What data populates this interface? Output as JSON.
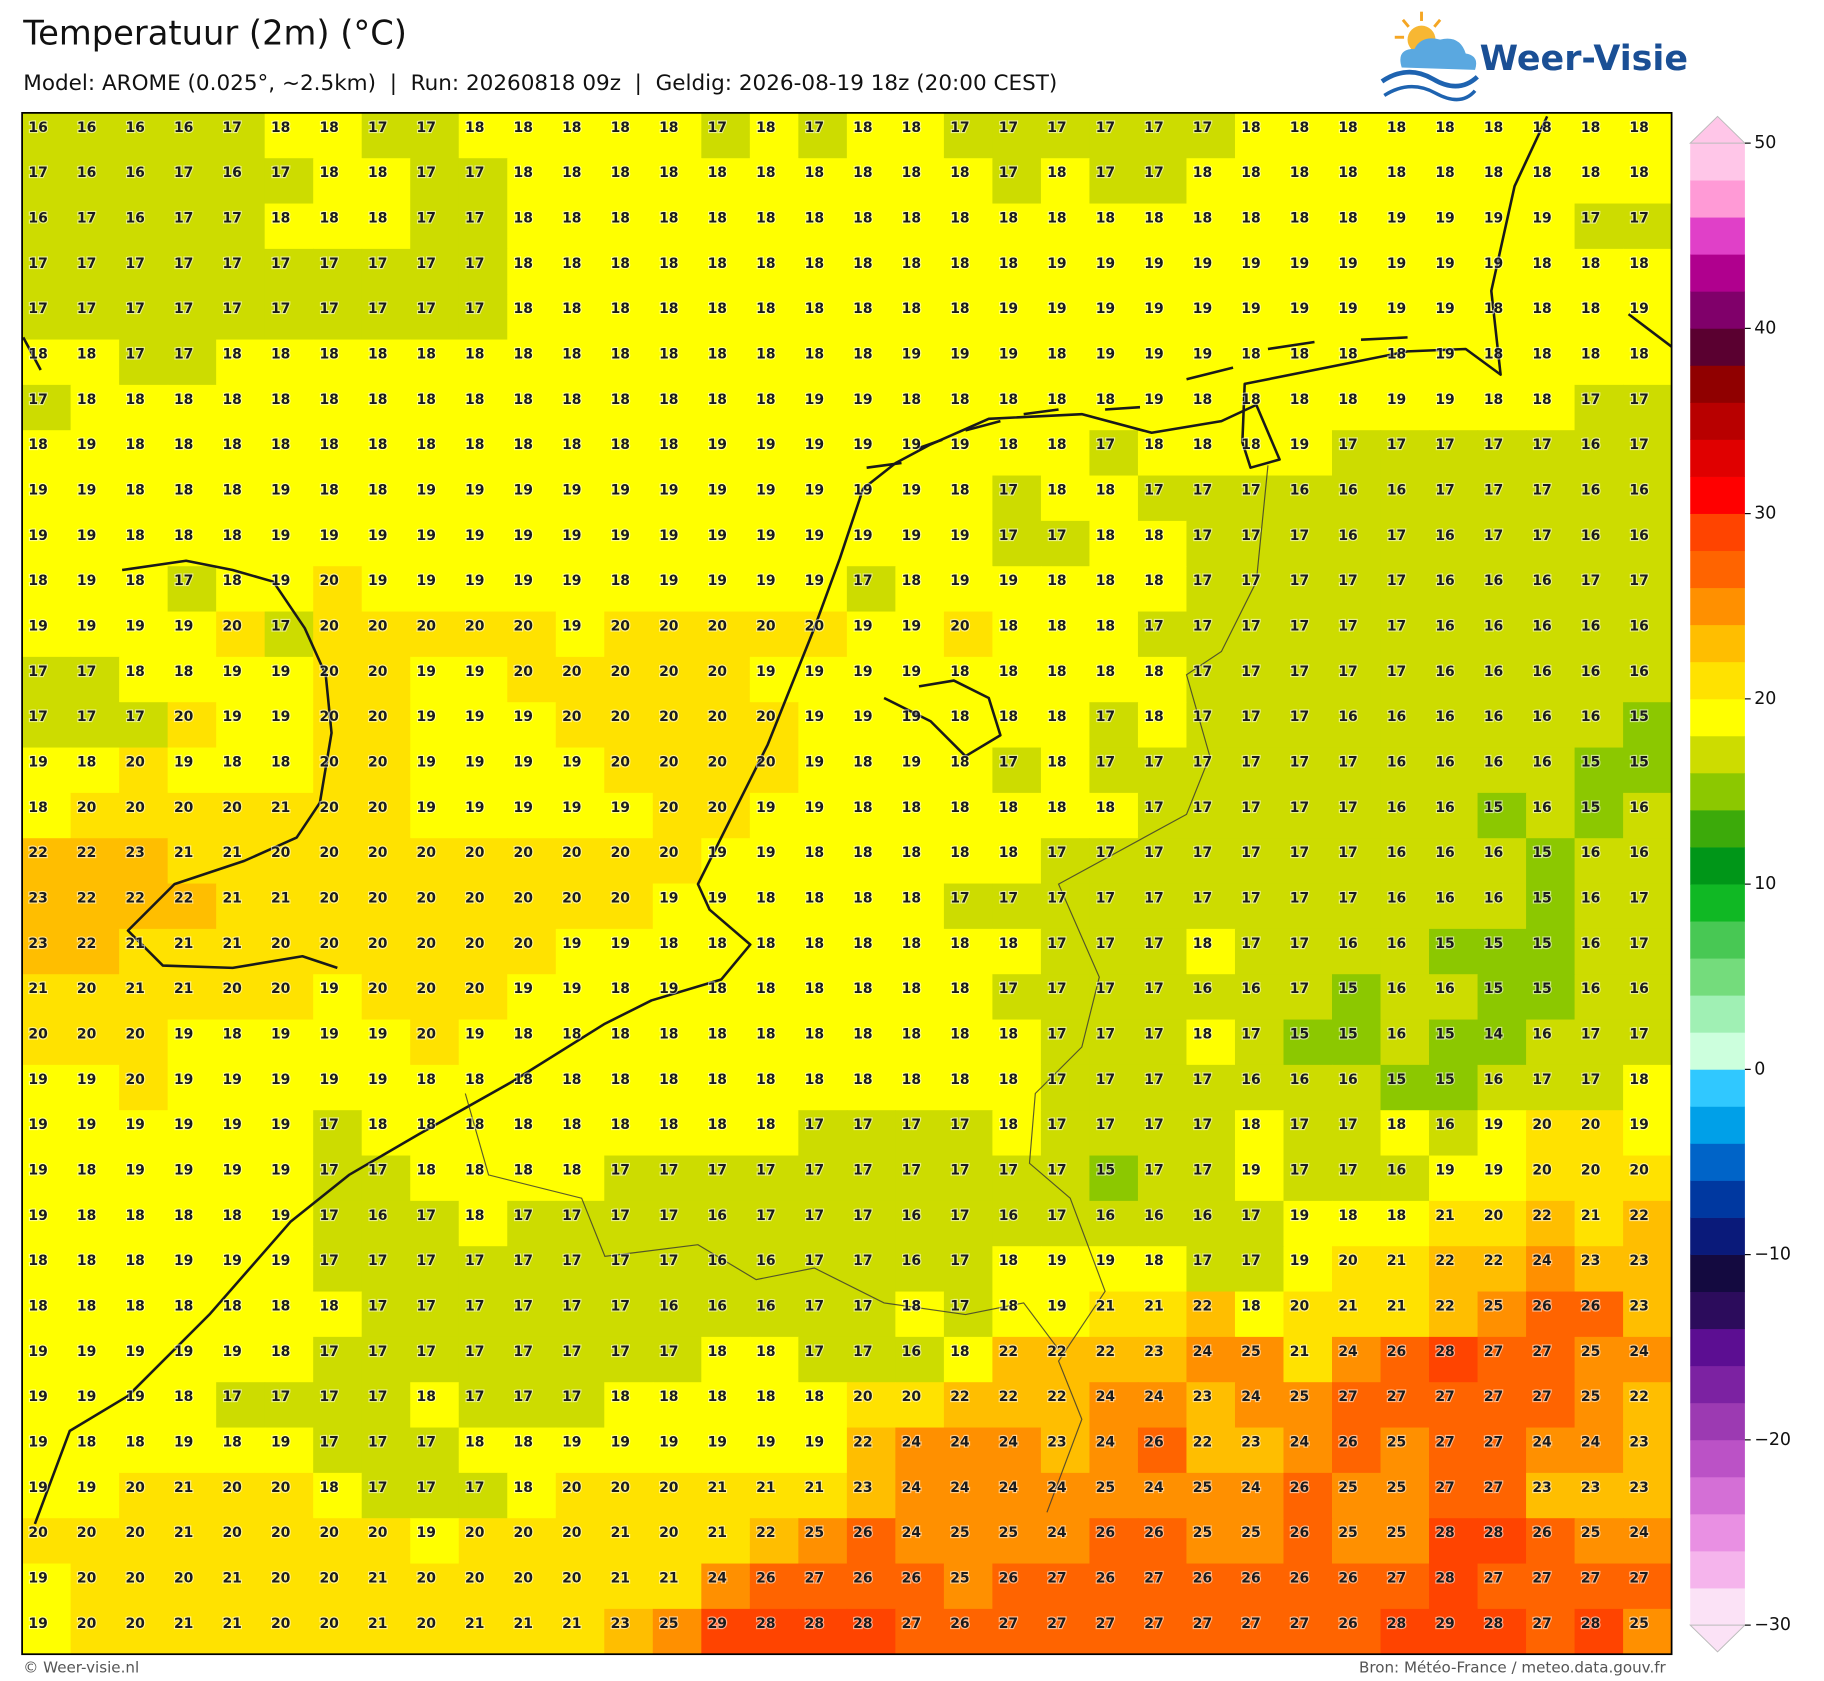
{
  "header": {
    "title": "Temperatuur (2m) (°C)",
    "subtitle": "Model: AROME (0.025°, ~2.5km)  |  Run: 20260818 09z  |  Geldig: 2026-08-19 18z (20:00 CEST)"
  },
  "logo": "Weer-Visie",
  "map": {
    "type": "grid-labels",
    "rows": [
      [
        16,
        16,
        16,
        16,
        17,
        18,
        18,
        17,
        17,
        18,
        18,
        18,
        18,
        18,
        17,
        18,
        17,
        18,
        18,
        17,
        17,
        17,
        17,
        17,
        17,
        18,
        18,
        18,
        18,
        18,
        18,
        18,
        18,
        18
      ],
      [
        17,
        16,
        16,
        17,
        16,
        17,
        18,
        18,
        17,
        17,
        18,
        18,
        18,
        18,
        18,
        18,
        18,
        18,
        18,
        18,
        17,
        18,
        17,
        17,
        18,
        18,
        18,
        18,
        18,
        18,
        18,
        18,
        18,
        18
      ],
      [
        16,
        17,
        16,
        17,
        17,
        18,
        18,
        18,
        17,
        17,
        18,
        18,
        18,
        18,
        18,
        18,
        18,
        18,
        18,
        18,
        18,
        18,
        18,
        18,
        18,
        18,
        18,
        18,
        19,
        19,
        19,
        19,
        17,
        17
      ],
      [
        17,
        17,
        17,
        17,
        17,
        17,
        17,
        17,
        17,
        17,
        18,
        18,
        18,
        18,
        18,
        18,
        18,
        18,
        18,
        18,
        18,
        19,
        19,
        19,
        19,
        19,
        19,
        19,
        19,
        19,
        19,
        18,
        18,
        18
      ],
      [
        17,
        17,
        17,
        17,
        17,
        17,
        17,
        17,
        17,
        17,
        18,
        18,
        18,
        18,
        18,
        18,
        18,
        18,
        18,
        18,
        19,
        19,
        19,
        19,
        19,
        19,
        19,
        19,
        19,
        19,
        18,
        18,
        18,
        19
      ],
      [
        18,
        18,
        17,
        17,
        18,
        18,
        18,
        18,
        18,
        18,
        18,
        18,
        18,
        18,
        18,
        18,
        18,
        18,
        19,
        19,
        19,
        18,
        19,
        19,
        19,
        18,
        18,
        18,
        18,
        19,
        18,
        18,
        18,
        18
      ],
      [
        17,
        18,
        18,
        18,
        18,
        18,
        18,
        18,
        18,
        18,
        18,
        18,
        18,
        18,
        18,
        18,
        19,
        19,
        18,
        18,
        18,
        18,
        18,
        19,
        18,
        18,
        18,
        18,
        19,
        19,
        18,
        18,
        17,
        17
      ],
      [
        18,
        19,
        18,
        18,
        18,
        18,
        18,
        18,
        18,
        18,
        18,
        18,
        18,
        18,
        19,
        19,
        19,
        19,
        19,
        19,
        18,
        18,
        17,
        18,
        18,
        18,
        19,
        17,
        17,
        17,
        17,
        17,
        16,
        17
      ],
      [
        19,
        19,
        18,
        18,
        18,
        19,
        18,
        18,
        19,
        19,
        19,
        19,
        19,
        19,
        19,
        19,
        19,
        19,
        19,
        18,
        17,
        18,
        18,
        17,
        17,
        17,
        16,
        16,
        16,
        17,
        17,
        17,
        16,
        16
      ],
      [
        19,
        19,
        18,
        18,
        18,
        19,
        19,
        19,
        19,
        19,
        19,
        19,
        19,
        19,
        19,
        19,
        19,
        19,
        19,
        19,
        17,
        17,
        18,
        18,
        17,
        17,
        17,
        16,
        17,
        16,
        17,
        17,
        16,
        16
      ],
      [
        18,
        19,
        18,
        17,
        18,
        19,
        20,
        19,
        19,
        19,
        19,
        19,
        18,
        19,
        19,
        19,
        19,
        17,
        18,
        19,
        19,
        18,
        18,
        18,
        17,
        17,
        17,
        17,
        17,
        16,
        16,
        16,
        17,
        17
      ],
      [
        19,
        19,
        19,
        19,
        20,
        17,
        20,
        20,
        20,
        20,
        20,
        19,
        20,
        20,
        20,
        20,
        20,
        19,
        19,
        20,
        18,
        18,
        18,
        17,
        17,
        17,
        17,
        17,
        17,
        16,
        16,
        16,
        16,
        16
      ],
      [
        17,
        17,
        18,
        18,
        19,
        19,
        20,
        20,
        19,
        19,
        20,
        20,
        20,
        20,
        20,
        19,
        19,
        19,
        19,
        18,
        18,
        18,
        18,
        18,
        17,
        17,
        17,
        17,
        17,
        16,
        16,
        16,
        16,
        16
      ],
      [
        17,
        17,
        17,
        20,
        19,
        19,
        20,
        20,
        19,
        19,
        19,
        20,
        20,
        20,
        20,
        20,
        19,
        19,
        19,
        18,
        18,
        18,
        17,
        18,
        17,
        17,
        17,
        16,
        16,
        16,
        16,
        16,
        16,
        15
      ],
      [
        19,
        18,
        20,
        19,
        18,
        18,
        20,
        20,
        19,
        19,
        19,
        19,
        20,
        20,
        20,
        20,
        19,
        18,
        19,
        18,
        17,
        18,
        17,
        17,
        17,
        17,
        17,
        17,
        16,
        16,
        16,
        16,
        15,
        15
      ],
      [
        18,
        20,
        20,
        20,
        20,
        21,
        20,
        20,
        19,
        19,
        19,
        19,
        19,
        20,
        20,
        19,
        19,
        18,
        18,
        18,
        18,
        18,
        18,
        17,
        17,
        17,
        17,
        17,
        16,
        16,
        15,
        16,
        15,
        16
      ],
      [
        22,
        22,
        23,
        21,
        21,
        20,
        20,
        20,
        20,
        20,
        20,
        20,
        20,
        20,
        19,
        19,
        18,
        18,
        18,
        18,
        18,
        17,
        17,
        17,
        17,
        17,
        17,
        17,
        16,
        16,
        16,
        15,
        16,
        16
      ],
      [
        23,
        22,
        22,
        22,
        21,
        21,
        20,
        20,
        20,
        20,
        20,
        20,
        20,
        19,
        19,
        18,
        18,
        18,
        18,
        17,
        17,
        17,
        17,
        17,
        17,
        17,
        17,
        17,
        16,
        16,
        16,
        15,
        16,
        17
      ],
      [
        23,
        22,
        21,
        21,
        21,
        20,
        20,
        20,
        20,
        20,
        20,
        19,
        19,
        18,
        18,
        18,
        18,
        18,
        18,
        18,
        18,
        17,
        17,
        17,
        18,
        17,
        17,
        16,
        16,
        15,
        15,
        15,
        16,
        17
      ],
      [
        21,
        20,
        21,
        21,
        20,
        20,
        19,
        20,
        20,
        20,
        19,
        19,
        18,
        19,
        18,
        18,
        18,
        18,
        18,
        18,
        17,
        17,
        17,
        17,
        16,
        16,
        17,
        15,
        16,
        16,
        15,
        15,
        16,
        16
      ],
      [
        20,
        20,
        20,
        19,
        18,
        19,
        19,
        19,
        20,
        19,
        18,
        18,
        18,
        18,
        18,
        18,
        18,
        18,
        18,
        18,
        18,
        17,
        17,
        17,
        18,
        17,
        15,
        15,
        16,
        15,
        14,
        16,
        17,
        17
      ],
      [
        19,
        19,
        20,
        19,
        19,
        19,
        19,
        19,
        18,
        18,
        18,
        18,
        18,
        18,
        18,
        18,
        18,
        18,
        18,
        18,
        18,
        17,
        17,
        17,
        17,
        16,
        16,
        16,
        15,
        15,
        16,
        17,
        17,
        18
      ],
      [
        19,
        19,
        19,
        19,
        19,
        19,
        17,
        18,
        18,
        18,
        18,
        18,
        18,
        18,
        18,
        18,
        17,
        17,
        17,
        17,
        18,
        17,
        17,
        17,
        17,
        18,
        17,
        17,
        18,
        16,
        19,
        20,
        20,
        19
      ],
      [
        19,
        18,
        19,
        19,
        19,
        19,
        17,
        17,
        18,
        18,
        18,
        18,
        17,
        17,
        17,
        17,
        17,
        17,
        17,
        17,
        17,
        17,
        15,
        17,
        17,
        19,
        17,
        17,
        16,
        19,
        19,
        20,
        20,
        20
      ],
      [
        19,
        18,
        18,
        18,
        18,
        19,
        17,
        16,
        17,
        18,
        17,
        17,
        17,
        17,
        16,
        17,
        17,
        17,
        16,
        17,
        16,
        17,
        16,
        16,
        16,
        17,
        19,
        18,
        18,
        21,
        20,
        22,
        21,
        22
      ],
      [
        18,
        18,
        18,
        19,
        19,
        19,
        17,
        17,
        17,
        17,
        17,
        17,
        17,
        17,
        16,
        16,
        17,
        17,
        16,
        17,
        18,
        19,
        19,
        18,
        17,
        17,
        19,
        20,
        21,
        22,
        22,
        24,
        23,
        23
      ],
      [
        18,
        18,
        18,
        18,
        18,
        18,
        18,
        17,
        17,
        17,
        17,
        17,
        17,
        16,
        16,
        16,
        17,
        17,
        18,
        17,
        18,
        19,
        21,
        21,
        22,
        18,
        20,
        21,
        21,
        22,
        25,
        26,
        26,
        23
      ],
      [
        19,
        19,
        19,
        19,
        19,
        18,
        17,
        17,
        17,
        17,
        17,
        17,
        17,
        17,
        18,
        18,
        17,
        17,
        16,
        18,
        22,
        22,
        22,
        23,
        24,
        25,
        21,
        24,
        26,
        28,
        27,
        27,
        25,
        24
      ],
      [
        19,
        19,
        19,
        18,
        17,
        17,
        17,
        17,
        18,
        17,
        17,
        17,
        18,
        18,
        18,
        18,
        18,
        20,
        20,
        22,
        22,
        22,
        24,
        24,
        23,
        24,
        25,
        27,
        27,
        27,
        27,
        27,
        25,
        22
      ],
      [
        19,
        18,
        18,
        19,
        18,
        19,
        17,
        17,
        17,
        18,
        18,
        19,
        19,
        19,
        19,
        19,
        19,
        22,
        24,
        24,
        24,
        23,
        24,
        26,
        22,
        23,
        24,
        26,
        25,
        27,
        27,
        24,
        24,
        23
      ],
      [
        19,
        19,
        20,
        21,
        20,
        20,
        18,
        17,
        17,
        17,
        18,
        20,
        20,
        20,
        21,
        21,
        21,
        23,
        24,
        24,
        24,
        24,
        25,
        24,
        25,
        24,
        26,
        25,
        25,
        27,
        27,
        23,
        23,
        23
      ],
      [
        20,
        20,
        20,
        21,
        20,
        20,
        20,
        20,
        19,
        20,
        20,
        20,
        21,
        20,
        21,
        22,
        25,
        26,
        24,
        25,
        25,
        24,
        26,
        26,
        25,
        25,
        26,
        25,
        25,
        28,
        28,
        26,
        25,
        24
      ],
      [
        19,
        20,
        20,
        20,
        21,
        20,
        20,
        21,
        20,
        20,
        20,
        20,
        21,
        21,
        24,
        26,
        27,
        26,
        26,
        25,
        26,
        27,
        26,
        27,
        26,
        26,
        26,
        26,
        27,
        28,
        27,
        27,
        27,
        27
      ],
      [
        19,
        20,
        20,
        21,
        21,
        20,
        20,
        21,
        20,
        21,
        21,
        21,
        23,
        25,
        29,
        28,
        28,
        28,
        27,
        26,
        27,
        27,
        27,
        27,
        27,
        27,
        27,
        26,
        28,
        29,
        28,
        27,
        28,
        25
      ]
    ]
  },
  "colorbar": {
    "lim": [
      -30,
      50
    ],
    "ticks": [
      {
        "value": -30,
        "label": "−30"
      },
      {
        "value": -20,
        "label": "−20"
      },
      {
        "value": -10,
        "label": "−10"
      },
      0,
      10,
      20,
      30,
      40,
      50
    ],
    "colors": [
      "#fbe2f6",
      "#f5b4ec",
      "#e990e3",
      "#d46fd6",
      "#bb52c6",
      "#9c3ab2",
      "#7c22a2",
      "#5c0e92",
      "#2c0c5c",
      "#140a40",
      "#0a1a7a",
      "#0038a0",
      "#0064c8",
      "#00a0e8",
      "#30c8ff",
      "#ccffdd",
      "#a0f0b4",
      "#74dc7c",
      "#48c854",
      "#10b824",
      "#009618",
      "#3caa0a",
      "#8cc800",
      "#cddc00",
      "#ffff00",
      "#ffe200",
      "#ffbe00",
      "#ff9000",
      "#ff6400",
      "#ff4400",
      "#ff0000",
      "#e00000",
      "#b80000",
      "#900000",
      "#5a0030",
      "#80006a",
      "#b0008e",
      "#e040c8",
      "#ff9ad6",
      "#ffc6e8"
    ]
  },
  "footer": {
    "left": "© Weer-visie.nl",
    "right": "Bron: Météo-France / meteo.data.gouv.fr"
  }
}
